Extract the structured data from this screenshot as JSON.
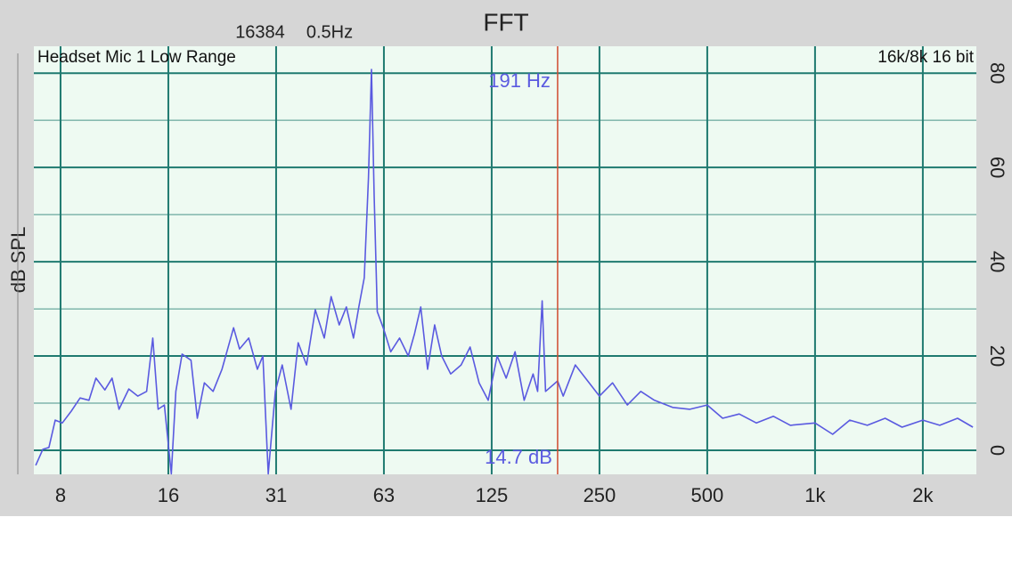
{
  "chart_data": {
    "type": "line",
    "title": "FFT",
    "fft_points": "16384",
    "resolution": "0.5Hz",
    "source_label": "Headset Mic 1 Low Range",
    "format_label": "16k/8k 16 bit",
    "y_label": "dB SPL",
    "log_x": true,
    "grid": true,
    "color": "#5a5ae0",
    "grid_color": "#1f7a70",
    "xlim": [
      6.58,
      2822
    ],
    "ylim": [
      -5.1,
      85.7
    ],
    "xticks": [
      {
        "value": 7.8125,
        "label": "8"
      },
      {
        "value": 15.625,
        "label": "16"
      },
      {
        "value": 31.25,
        "label": "31"
      },
      {
        "value": 62.5,
        "label": "63"
      },
      125,
      250,
      500,
      {
        "value": 1000,
        "label": "1k"
      },
      {
        "value": 2000,
        "label": "2k"
      }
    ],
    "yticks": [
      0,
      20,
      40,
      60,
      80
    ],
    "yminor": [
      10,
      30,
      50,
      70
    ],
    "cursor": {
      "x": 191,
      "x_label": "191 Hz",
      "y_label": "14.7 dB",
      "color": "#d04a30"
    },
    "x": [
      6.66,
      6.97,
      7.25,
      7.55,
      7.9,
      8.37,
      8.86,
      9.38,
      9.81,
      10.39,
      10.88,
      11.38,
      12.12,
      12.84,
      13.59,
      14.14,
      14.63,
      15.23,
      15.93,
      16.4,
      17.07,
      18.08,
      18.83,
      19.7,
      20.84,
      22.07,
      23.77,
      24.7,
      26.2,
      27.7,
      28.7,
      29.7,
      31.1,
      32.5,
      34.4,
      36.0,
      38.0,
      40.2,
      42.6,
      44.5,
      46.9,
      49.1,
      51.4,
      53.2,
      55.1,
      56.6,
      57.7,
      58.7,
      59.9,
      62.4,
      65.3,
      69.1,
      73.1,
      76.1,
      79.2,
      82.8,
      86.6,
      90.6,
      96,
      102.7,
      108.8,
      115.3,
      122.2,
      129.5,
      137.2,
      145.3,
      154,
      163.1,
      168,
      172.9,
      176.7,
      191,
      198,
      214,
      250,
      272,
      299,
      326,
      356,
      400,
      447,
      500,
      552,
      614,
      686,
      765,
      853,
      1000,
      1120,
      1250,
      1400,
      1570,
      1750,
      2000,
      2230,
      2500,
      2760
    ],
    "values": [
      -3.2,
      0.2,
      0.6,
      6.4,
      5.8,
      8.3,
      11.1,
      10.6,
      15.3,
      12.8,
      15.3,
      8.7,
      13,
      11.5,
      12.5,
      23.8,
      8.7,
      9.6,
      -5,
      12.5,
      20.4,
      19.1,
      6.8,
      14.3,
      12.5,
      17.2,
      26,
      21.5,
      23.8,
      17.2,
      20,
      -5,
      12.5,
      18.1,
      8.7,
      22.8,
      18.1,
      29.8,
      23.8,
      32.6,
      26.6,
      30.4,
      23.8,
      30.4,
      36.6,
      57.7,
      80.8,
      54,
      29.4,
      25.7,
      20.9,
      23.8,
      20,
      24.7,
      30.4,
      17.2,
      26.6,
      20,
      16.2,
      18.1,
      21.9,
      14.3,
      10.6,
      20,
      15.3,
      20.9,
      10.6,
      16.2,
      12.5,
      31.7,
      12.5,
      14.7,
      11.5,
      18.1,
      11.5,
      14.3,
      9.6,
      12.5,
      10.6,
      9.1,
      8.7,
      9.6,
      6.8,
      7.7,
      5.8,
      7.2,
      5.3,
      5.8,
      3.4,
      6.4,
      5.3,
      6.8,
      4.9,
      6.4,
      5.3,
      6.8,
      4.9
    ]
  }
}
